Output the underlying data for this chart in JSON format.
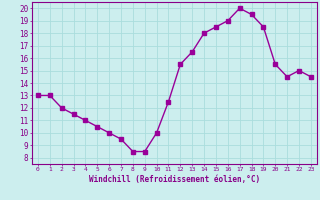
{
  "x": [
    0,
    1,
    2,
    3,
    4,
    5,
    6,
    7,
    8,
    9,
    10,
    11,
    12,
    13,
    14,
    15,
    16,
    17,
    18,
    19,
    20,
    21,
    22,
    23
  ],
  "y": [
    13.0,
    13.0,
    12.0,
    11.5,
    11.0,
    10.5,
    10.0,
    9.5,
    8.5,
    8.5,
    10.0,
    12.5,
    15.5,
    16.5,
    18.0,
    18.5,
    19.0,
    20.0,
    19.5,
    18.5,
    15.5,
    14.5,
    15.0,
    14.5
  ],
  "line_color": "#990099",
  "marker_color": "#990099",
  "bg_color": "#cceeee",
  "grid_color": "#aadddd",
  "xlabel": "Windchill (Refroidissement éolien,°C)",
  "ylabel_ticks": [
    8,
    9,
    10,
    11,
    12,
    13,
    14,
    15,
    16,
    17,
    18,
    19,
    20
  ],
  "xlim": [
    -0.5,
    23.5
  ],
  "ylim": [
    7.5,
    20.5
  ],
  "font_color": "#880088",
  "font_family": "monospace"
}
